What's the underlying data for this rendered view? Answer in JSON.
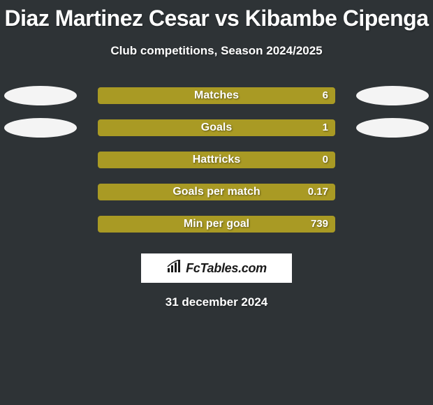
{
  "title": "Diaz Martinez Cesar vs Kibambe Cipenga",
  "subtitle": "Club competitions, Season 2024/2025",
  "footer_date": "31 december 2024",
  "brand": {
    "text": "FcTables.com"
  },
  "colors": {
    "background": "#2e3336",
    "bar_fill": "#a99a24",
    "ellipse_light": "#f4f4f4",
    "text": "#ffffff"
  },
  "stats": [
    {
      "label": "Matches",
      "value": "6",
      "fill_pct": 100,
      "ellipse_left": "light",
      "ellipse_right": "light"
    },
    {
      "label": "Goals",
      "value": "1",
      "fill_pct": 100,
      "ellipse_left": "light",
      "ellipse_right": "light"
    },
    {
      "label": "Hattricks",
      "value": "0",
      "fill_pct": 100,
      "ellipse_left": "none",
      "ellipse_right": "none"
    },
    {
      "label": "Goals per match",
      "value": "0.17",
      "fill_pct": 100,
      "ellipse_left": "none",
      "ellipse_right": "none"
    },
    {
      "label": "Min per goal",
      "value": "739",
      "fill_pct": 100,
      "ellipse_left": "none",
      "ellipse_right": "none"
    }
  ]
}
